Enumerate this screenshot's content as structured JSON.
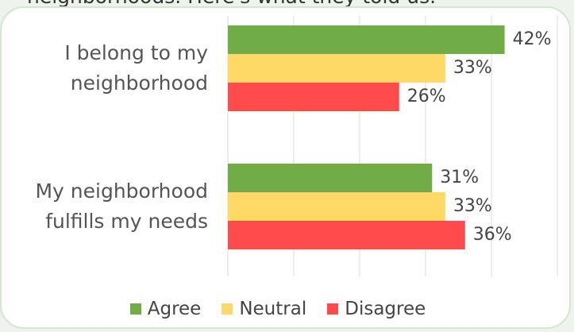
{
  "chart_data": {
    "type": "barh",
    "subtitle": "neighborhoods. Here's what they told us.",
    "categories": [
      "I belong to my neighborhood",
      "My neighborhood fulfills my needs"
    ],
    "series": [
      {
        "name": "Agree",
        "color": "#70ad47",
        "values": [
          42,
          31
        ],
        "value_labels": [
          "42%",
          "31%"
        ]
      },
      {
        "name": "Neutral",
        "color": "#ffd966",
        "values": [
          33,
          33
        ],
        "value_labels": [
          "33%",
          "33%"
        ]
      },
      {
        "name": "Disagree",
        "color": "#ff4b4b",
        "values": [
          26,
          36
        ],
        "value_labels": [
          "26%",
          "36%"
        ]
      }
    ],
    "xlim": [
      0,
      50
    ],
    "xticks": [
      0,
      10,
      20,
      30,
      40,
      50
    ],
    "grid": true,
    "legend": "bottom"
  }
}
